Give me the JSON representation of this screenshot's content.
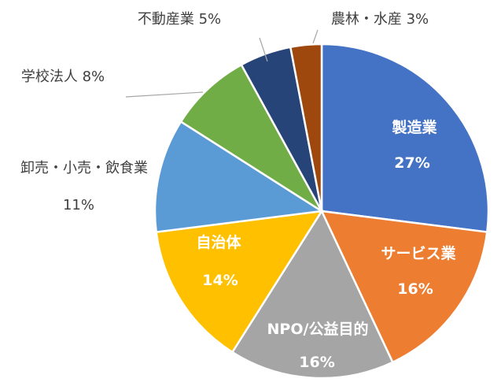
{
  "chart_data": {
    "type": "pie",
    "slices": [
      {
        "name": "製造業",
        "value": 27,
        "value_label": "27%",
        "color": "#4472C4",
        "label_pos": "inside"
      },
      {
        "name": "サービス業",
        "value": 16,
        "value_label": "16%",
        "color": "#ED7D31",
        "label_pos": "inside"
      },
      {
        "name": "NPO/公益目的",
        "value": 16,
        "value_label": "16%",
        "color": "#A5A5A5",
        "label_pos": "inside"
      },
      {
        "name": "自治体",
        "value": 14,
        "value_label": "14%",
        "color": "#FFC000",
        "label_pos": "inside"
      },
      {
        "name": "卸売・小売・飲食業",
        "value": 11,
        "value_label": "11%",
        "color": "#5B9BD5",
        "label_pos": "outside"
      },
      {
        "name": "学校法人",
        "value": 8,
        "value_label": "8%",
        "color": "#70AD47",
        "label_pos": "outside"
      },
      {
        "name": "不動産業",
        "value": 5,
        "value_label": "5%",
        "color": "#264478",
        "label_pos": "outside"
      },
      {
        "name": "農林・水産",
        "value": 3,
        "value_label": "3%",
        "color": "#9E480E",
        "label_pos": "outside"
      }
    ]
  }
}
